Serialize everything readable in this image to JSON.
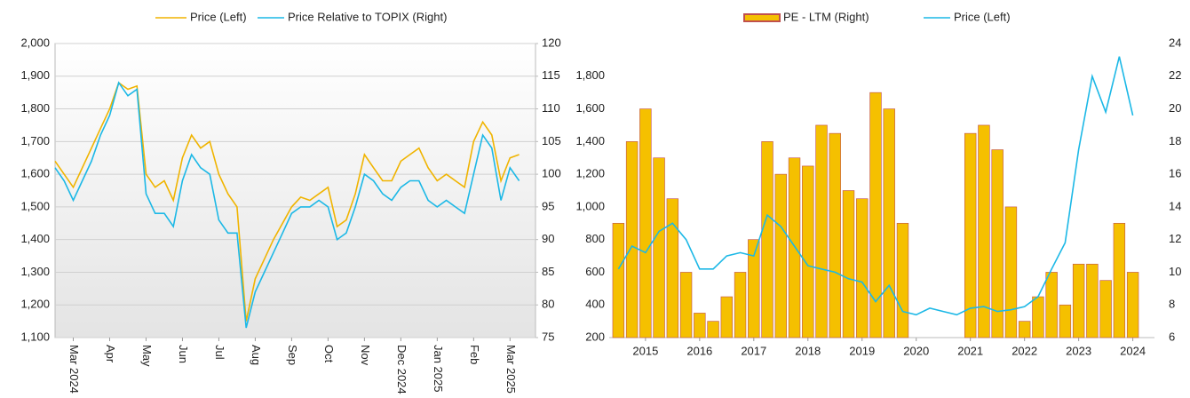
{
  "chart_data": [
    {
      "type": "line",
      "x": [
        -0.5,
        -0.25,
        0,
        0.25,
        0.5,
        0.75,
        1,
        1.25,
        1.5,
        1.75,
        2,
        2.25,
        2.5,
        2.75,
        3,
        3.25,
        3.5,
        3.75,
        4,
        4.25,
        4.5,
        4.75,
        5,
        5.25,
        5.5,
        5.75,
        6,
        6.25,
        6.5,
        6.75,
        7,
        7.25,
        7.5,
        7.75,
        8,
        8.25,
        8.5,
        8.75,
        9,
        9.25,
        9.5,
        9.75,
        10,
        10.25,
        10.5,
        10.75,
        11,
        11.25,
        11.5,
        11.75,
        12,
        12.25
      ],
      "series": [
        {
          "name": "Price (Left)",
          "color": "#f0b400",
          "axis": "y",
          "values": [
            1640,
            1600,
            1560,
            1620,
            1680,
            1740,
            1800,
            1880,
            1860,
            1870,
            1600,
            1560,
            1580,
            1520,
            1650,
            1720,
            1680,
            1700,
            1600,
            1540,
            1500,
            1150,
            1280,
            1340,
            1400,
            1450,
            1500,
            1530,
            1520,
            1540,
            1560,
            1440,
            1460,
            1540,
            1660,
            1620,
            1580,
            1580,
            1640,
            1660,
            1680,
            1620,
            1580,
            1600,
            1580,
            1560,
            1700,
            1760,
            1720,
            1580,
            1650,
            1660
          ]
        },
        {
          "name": "Price Relative to TOPIX (Right)",
          "color": "#1cb8e6",
          "axis": "y2",
          "values": [
            101,
            99,
            96,
            99,
            102,
            106,
            109,
            114,
            112,
            113,
            97,
            94,
            94,
            92,
            99,
            103,
            101,
            100,
            93,
            91,
            91,
            76.5,
            82,
            85,
            88,
            91,
            94,
            95,
            95,
            96,
            95,
            90,
            91,
            95,
            100,
            99,
            97,
            96,
            98,
            99,
            99,
            96,
            95,
            96,
            95,
            94,
            100,
            106,
            104,
            96,
            101,
            99
          ]
        }
      ],
      "xlim": [
        -0.5,
        12.7
      ],
      "xticks": [
        {
          "value": 0,
          "label": "Mar 2024"
        },
        {
          "value": 1,
          "label": "Apr"
        },
        {
          "value": 2,
          "label": "May"
        },
        {
          "value": 3,
          "label": "Jun"
        },
        {
          "value": 4,
          "label": "Jul"
        },
        {
          "value": 5,
          "label": "Aug"
        },
        {
          "value": 6,
          "label": "Sep"
        },
        {
          "value": 7,
          "label": "Oct"
        },
        {
          "value": 8,
          "label": "Nov"
        },
        {
          "value": 9,
          "label": "Dec 2024"
        },
        {
          "value": 10,
          "label": "Jan 2025"
        },
        {
          "value": 11,
          "label": "Feb"
        },
        {
          "value": 12,
          "label": "Mar 2025"
        }
      ],
      "ylim": [
        1100,
        2000
      ],
      "yticks": [
        {
          "value": 1100,
          "label": "1,100"
        },
        {
          "value": 1200,
          "label": "1,200"
        },
        {
          "value": 1300,
          "label": "1,300"
        },
        {
          "value": 1400,
          "label": "1,400"
        },
        {
          "value": 1500,
          "label": "1,500"
        },
        {
          "value": 1600,
          "label": "1,600"
        },
        {
          "value": 1700,
          "label": "1,700"
        },
        {
          "value": 1800,
          "label": "1,800"
        },
        {
          "value": 1900,
          "label": "1,900"
        },
        {
          "value": 2000,
          "label": "2,000"
        }
      ],
      "y2lim": [
        75,
        120
      ],
      "y2ticks": [
        75,
        80,
        85,
        90,
        95,
        100,
        105,
        110,
        115,
        120
      ],
      "grid": true
    },
    {
      "type": "combo",
      "x": [
        2014.5,
        2014.75,
        2015,
        2015.25,
        2015.5,
        2015.75,
        2016,
        2016.25,
        2016.5,
        2016.75,
        2017,
        2017.25,
        2017.5,
        2017.75,
        2018,
        2018.25,
        2018.5,
        2018.75,
        2019,
        2019.25,
        2019.5,
        2019.75,
        2020,
        2020.25,
        2020.5,
        2020.75,
        2021,
        2021.25,
        2021.5,
        2021.75,
        2022,
        2022.25,
        2022.5,
        2022.75,
        2023,
        2023.25,
        2023.5,
        2023.75,
        2024
      ],
      "series": [
        {
          "name": "PE - LTM (Right)",
          "type": "bar",
          "color": "#f5c000",
          "edge_color": "#c0504d",
          "axis": "y2",
          "values": [
            13,
            18,
            20,
            17,
            14.5,
            10,
            7.5,
            7,
            8.5,
            10,
            12,
            18,
            16,
            17,
            16.5,
            19,
            18.5,
            15,
            14.5,
            21,
            20,
            13,
            null,
            null,
            null,
            null,
            18.5,
            19,
            17.5,
            14,
            7,
            8.5,
            10,
            8,
            10.5,
            10.5,
            9.5,
            13,
            10
          ]
        },
        {
          "name": "Price (Left)",
          "type": "line",
          "color": "#1cb8e6",
          "axis": "y",
          "values": [
            620,
            760,
            720,
            850,
            900,
            800,
            620,
            620,
            700,
            720,
            700,
            950,
            880,
            760,
            640,
            620,
            600,
            560,
            540,
            420,
            520,
            360,
            340,
            380,
            360,
            340,
            380,
            390,
            360,
            370,
            390,
            450,
            620,
            780,
            1350,
            1800,
            1580,
            1920,
            1560
          ]
        }
      ],
      "xlim": [
        2014.33,
        2024.4
      ],
      "xticks": [
        2015,
        2016,
        2017,
        2018,
        2019,
        2020,
        2021,
        2022,
        2023,
        2024
      ],
      "ylim": [
        200,
        2000
      ],
      "yticks": [
        200,
        400,
        600,
        800,
        {
          "value": 1000,
          "label": "1,000"
        },
        {
          "value": 1200,
          "label": "1,200"
        },
        {
          "value": 1400,
          "label": "1,400"
        },
        {
          "value": 1600,
          "label": "1,600"
        },
        {
          "value": 1800,
          "label": "1,800"
        }
      ],
      "y2lim": [
        6,
        24
      ],
      "y2ticks": [
        6,
        8,
        10,
        12,
        14,
        16,
        18,
        20,
        22,
        24
      ],
      "grid": false
    }
  ]
}
